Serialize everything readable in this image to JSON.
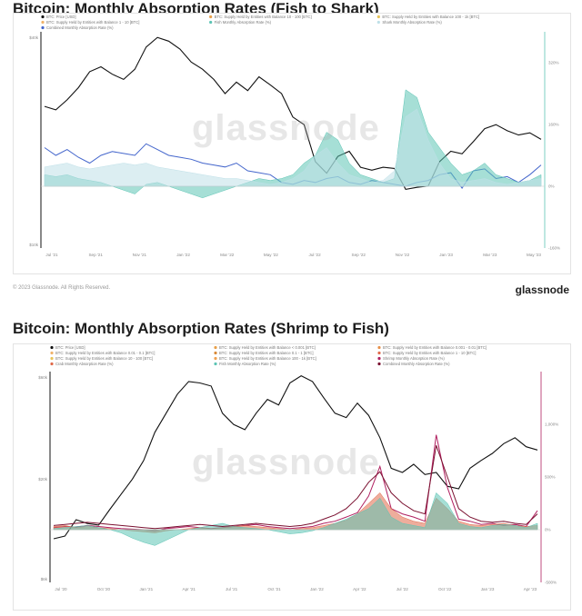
{
  "brand": "glassnode",
  "copyright": "© 2023 Glassnode. All Rights Reserved.",
  "watermark": "glassnode",
  "chart_data": [
    {
      "type": "line",
      "title": "Bitcoin: Monthly Absorption Rates (Fish to Shark)",
      "legend": [
        {
          "label": "BTC: Price [USD]",
          "color": "#111111"
        },
        {
          "label": "BTC: Supply Held by Entities with Balance 10 - 100 [BTC]",
          "color": "#e8a04a"
        },
        {
          "label": "BTC: Supply Held by Entities with Balance 100 - 1k [BTC]",
          "color": "#e8c45a"
        },
        {
          "label": "BTC: Supply Held by Entities with Balance 1 - 10 [BTC]",
          "color": "#f0b26a"
        },
        {
          "label": "Fish Monthly Absorption Rate (%)",
          "color": "#5cc4b4"
        },
        {
          "label": "Shark Monthly Absorption Rate (%)",
          "color": "#bfe0e8"
        },
        {
          "label": "Combined Monthly Absorption Rate (%)",
          "color": "#4466cc"
        }
      ],
      "x_ticks": [
        "Jul '21",
        "Sep '21",
        "Nov '21",
        "Jan '22",
        "Mar '22",
        "May '22",
        "Jul '22",
        "Sep '22",
        "Nov '22",
        "Jan '23",
        "Mar '23",
        "May '23"
      ],
      "y_left_ticks": [
        "$40k",
        "$10k"
      ],
      "y_right_ticks": [
        "320%",
        "160%",
        "0%",
        "-160%"
      ],
      "y_right_range": [
        -160,
        400
      ],
      "series": [
        {
          "name": "BTC: Price [USD]",
          "color": "#111111",
          "values": [
            34000,
            33000,
            36000,
            40000,
            46000,
            48000,
            45000,
            43000,
            47000,
            57000,
            62000,
            60000,
            56000,
            50000,
            47000,
            43000,
            38000,
            42000,
            39000,
            44000,
            41000,
            38000,
            31000,
            29000,
            21000,
            19000,
            22000,
            23000,
            20000,
            19500,
            20000,
            19800,
            16500,
            16800,
            17000,
            21000,
            23000,
            22500,
            25000,
            28000,
            29000,
            27500,
            26500,
            27000,
            25500
          ]
        },
        {
          "name": "Combined Monthly Absorption Rate (%)",
          "color": "#4466cc",
          "values": [
            100,
            80,
            95,
            75,
            60,
            80,
            90,
            85,
            80,
            110,
            95,
            80,
            75,
            70,
            60,
            55,
            50,
            60,
            40,
            35,
            30,
            10,
            5,
            15,
            10,
            20,
            25,
            10,
            5,
            15,
            10,
            5,
            0,
            10,
            15,
            30,
            35,
            -5,
            40,
            45,
            20,
            25,
            10,
            30,
            55
          ]
        },
        {
          "name": "Fish Monthly Absorption Rate (%)",
          "color": "#5cc4b4",
          "values": [
            30,
            25,
            30,
            20,
            15,
            10,
            0,
            -10,
            -20,
            5,
            10,
            0,
            -10,
            -20,
            -30,
            -20,
            -10,
            0,
            10,
            20,
            15,
            20,
            30,
            60,
            80,
            140,
            120,
            60,
            30,
            20,
            10,
            20,
            250,
            230,
            140,
            100,
            60,
            30,
            40,
            60,
            30,
            20,
            10,
            15,
            30
          ]
        },
        {
          "name": "Shark Monthly Absorption Rate (%)",
          "color": "#bfe0e8",
          "values": [
            50,
            55,
            60,
            50,
            45,
            50,
            55,
            60,
            55,
            60,
            50,
            45,
            40,
            35,
            30,
            25,
            20,
            20,
            15,
            10,
            5,
            10,
            20,
            40,
            80,
            100,
            60,
            30,
            20,
            10,
            15,
            40,
            180,
            200,
            120,
            60,
            20,
            10,
            15,
            20,
            10,
            5,
            10,
            15,
            20
          ]
        }
      ]
    },
    {
      "type": "line",
      "title": "Bitcoin: Monthly Absorption Rates (Shrimp to Fish)",
      "legend": [
        {
          "label": "BTC: Price [USD]",
          "color": "#111111"
        },
        {
          "label": "BTC: Supply Held by Entities with Balance < 0.001 [BTC]",
          "color": "#e8a04a"
        },
        {
          "label": "BTC: Supply Held by Entities with Balance 0.001 - 0.01 [BTC]",
          "color": "#e8904a"
        },
        {
          "label": "BTC: Supply Held by Entities with Balance 0.01 - 0.1 [BTC]",
          "color": "#f0b26a"
        },
        {
          "label": "BTC: Supply Held by Entities with Balance 0.1 - 1 [BTC]",
          "color": "#d88a3a"
        },
        {
          "label": "BTC: Supply Held by Entities with Balance 1 - 10 [BTC]",
          "color": "#e06a4a"
        },
        {
          "label": "BTC: Supply Held by Entities with Balance 10 - 100 [BTC]",
          "color": "#e8c45a"
        },
        {
          "label": "BTC: Supply Held by Entities with Balance 100 - 1k [BTC]",
          "color": "#f0a050"
        },
        {
          "label": "Shrimp Monthly Absorption Rate (%)",
          "color": "#b02060"
        },
        {
          "label": "Crab Monthly Absorption Rate (%)",
          "color": "#e06a4a"
        },
        {
          "label": "Fish Monthly Absorption Rate (%)",
          "color": "#5cc4b4"
        },
        {
          "label": "Combined Monthly Absorption Rate (%)",
          "color": "#7a1030"
        }
      ],
      "x_ticks": [
        "Jul '20",
        "Oct '20",
        "Jan '21",
        "Apr '21",
        "Jul '21",
        "Oct '21",
        "Jan '22",
        "Apr '22",
        "Jul '22",
        "Oct '22",
        "Jan '23",
        "Apr '23"
      ],
      "y_left_ticks": [
        "$60k",
        "$20k",
        "$6k"
      ],
      "y_right_ticks": [
        "1,000%",
        "500%",
        "0%",
        "-500%"
      ],
      "y_right_range": [
        -500,
        1500
      ],
      "series": [
        {
          "name": "BTC: Price [USD]",
          "color": "#111111",
          "values": [
            9200,
            9500,
            11500,
            11000,
            10800,
            13000,
            15500,
            18500,
            23000,
            32000,
            40000,
            50000,
            58000,
            57000,
            55000,
            40000,
            35000,
            33000,
            40000,
            47000,
            44000,
            57000,
            62000,
            58000,
            48000,
            40000,
            38000,
            45000,
            39000,
            30000,
            21000,
            20000,
            22000,
            19500,
            20000,
            17000,
            16500,
            21000,
            23000,
            25000,
            28000,
            30000,
            27000,
            26000
          ]
        },
        {
          "name": "Shrimp Monthly Absorption Rate (%)",
          "color": "#b02060",
          "values": [
            20,
            30,
            25,
            40,
            30,
            20,
            10,
            5,
            0,
            -10,
            10,
            20,
            30,
            20,
            10,
            20,
            30,
            40,
            50,
            30,
            20,
            10,
            20,
            30,
            60,
            80,
            120,
            160,
            320,
            600,
            200,
            150,
            120,
            80,
            900,
            400,
            100,
            80,
            50,
            60,
            40,
            50,
            30,
            180
          ]
        },
        {
          "name": "Crab Monthly Absorption Rate (%)",
          "color": "#e06a4a",
          "values": [
            30,
            40,
            20,
            30,
            20,
            10,
            0,
            -10,
            -20,
            -30,
            -10,
            0,
            10,
            20,
            10,
            20,
            30,
            40,
            30,
            20,
            10,
            0,
            10,
            20,
            40,
            60,
            90,
            150,
            250,
            350,
            200,
            120,
            80,
            60,
            300,
            200,
            80,
            50,
            40,
            50,
            60,
            40,
            30,
            40
          ]
        },
        {
          "name": "Fish Monthly Absorption Rate (%)",
          "color": "#5cc4b4",
          "values": [
            10,
            20,
            30,
            40,
            20,
            0,
            -30,
            -80,
            -120,
            -150,
            -100,
            -50,
            0,
            20,
            40,
            60,
            30,
            20,
            10,
            0,
            -20,
            -40,
            -30,
            -10,
            20,
            60,
            100,
            150,
            200,
            300,
            120,
            60,
            40,
            20,
            350,
            250,
            60,
            30,
            20,
            40,
            50,
            40,
            20,
            60
          ]
        },
        {
          "name": "Combined Monthly Absorption Rate (%)",
          "color": "#7a1030",
          "values": [
            40,
            50,
            60,
            70,
            60,
            50,
            40,
            30,
            20,
            10,
            20,
            30,
            40,
            50,
            40,
            30,
            40,
            50,
            60,
            50,
            40,
            30,
            40,
            60,
            100,
            140,
            200,
            300,
            450,
            550,
            350,
            250,
            180,
            150,
            800,
            500,
            200,
            120,
            80,
            70,
            80,
            60,
            50,
            150
          ]
        }
      ]
    }
  ]
}
